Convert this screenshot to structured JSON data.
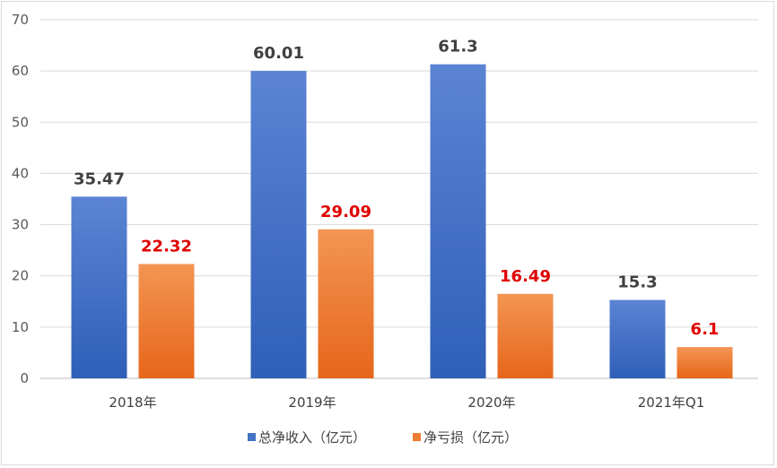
{
  "chart_data": {
    "type": "bar",
    "title": "",
    "xlabel": "",
    "ylabel": "",
    "categories": [
      "2018年",
      "2019年",
      "2020年",
      "2021年Q1"
    ],
    "series": [
      {
        "name": "总净收入（亿元）",
        "values": [
          35.47,
          60.01,
          61.3,
          15.3
        ],
        "labels": [
          "35.47",
          "60.01",
          "61.3",
          "15.3"
        ],
        "color": "#4472c4",
        "label_color": "#404040"
      },
      {
        "name": "净亏损（亿元）",
        "values": [
          22.32,
          29.09,
          16.49,
          6.1
        ],
        "labels": [
          "22.32",
          "29.09",
          "16.49",
          "6.1"
        ],
        "color": "#ed7d31",
        "label_color": "#e00000"
      }
    ],
    "ylim": [
      0,
      70
    ],
    "yticks": [
      0,
      10,
      20,
      30,
      40,
      50,
      60,
      70
    ],
    "grid": true,
    "legend": "bottom"
  }
}
